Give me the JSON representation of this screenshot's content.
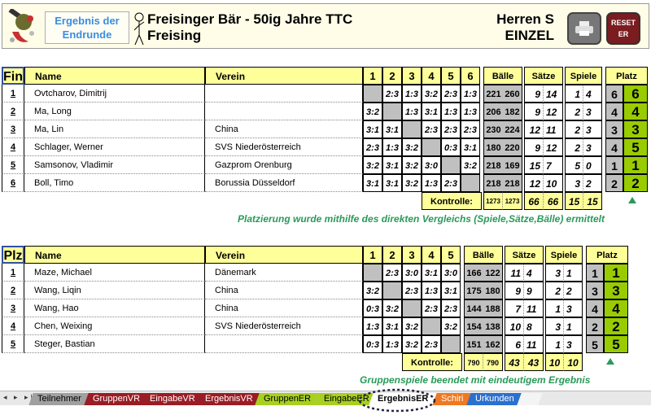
{
  "header": {
    "end_button": "Ergebnis der Endrunde",
    "title_line1": "Freisinger Bär - 50ig Jahre TTC",
    "title_line2": "Freising",
    "category_line1": "Herren S",
    "category_line2": "EINZEL",
    "print_icon": "printer-icon",
    "reset_label_line1": "RESET",
    "reset_label_line2": "ER"
  },
  "tables": [
    {
      "corner": "Fin",
      "col_name": "Name",
      "col_verein": "Verein",
      "cols": [
        "1",
        "2",
        "3",
        "4",
        "5",
        "6"
      ],
      "col_baelle": "Bälle",
      "col_saetze": "Sätze",
      "col_spiele": "Spiele",
      "col_platz": "Platz",
      "rows": [
        {
          "rank": "1",
          "name": "Ovtcharov, Dimitrij",
          "verein": "",
          "results": [
            null,
            "2:3",
            "1:3",
            "3:2",
            "2:3",
            "1:3"
          ],
          "baelle": [
            "221",
            "260"
          ],
          "saetze": [
            "9",
            "14"
          ],
          "spiele": [
            "1",
            "4"
          ],
          "platz_calc": "6",
          "platz": "6"
        },
        {
          "rank": "2",
          "name": "Ma, Long",
          "verein": "",
          "results": [
            "3:2",
            null,
            "1:3",
            "3:1",
            "1:3",
            "1:3"
          ],
          "baelle": [
            "206",
            "182"
          ],
          "saetze": [
            "9",
            "12"
          ],
          "spiele": [
            "2",
            "3"
          ],
          "platz_calc": "4",
          "platz": "4"
        },
        {
          "rank": "3",
          "name": "Ma, Lin",
          "verein": "China",
          "results": [
            "3:1",
            "3:1",
            null,
            "2:3",
            "2:3",
            "2:3"
          ],
          "baelle": [
            "230",
            "224"
          ],
          "saetze": [
            "12",
            "11"
          ],
          "spiele": [
            "2",
            "3"
          ],
          "platz_calc": "3",
          "platz": "3"
        },
        {
          "rank": "4",
          "name": "Schlager, Werner",
          "verein": "SVS Niederösterreich",
          "results": [
            "2:3",
            "1:3",
            "3:2",
            null,
            "0:3",
            "3:1"
          ],
          "baelle": [
            "180",
            "220"
          ],
          "saetze": [
            "9",
            "12"
          ],
          "spiele": [
            "2",
            "3"
          ],
          "platz_calc": "4",
          "platz": "5"
        },
        {
          "rank": "5",
          "name": "Samsonov, Vladimir",
          "verein": "Gazprom Orenburg",
          "results": [
            "3:2",
            "3:1",
            "3:2",
            "3:0",
            null,
            "3:2"
          ],
          "baelle": [
            "218",
            "169"
          ],
          "saetze": [
            "15",
            "7"
          ],
          "spiele": [
            "5",
            "0"
          ],
          "platz_calc": "1",
          "platz": "1"
        },
        {
          "rank": "6",
          "name": "Boll, Timo",
          "verein": "Borussia Düsseldorf",
          "results": [
            "3:1",
            "3:1",
            "3:2",
            "1:3",
            "2:3",
            null
          ],
          "baelle": [
            "218",
            "218"
          ],
          "saetze": [
            "12",
            "10"
          ],
          "spiele": [
            "3",
            "2"
          ],
          "platz_calc": "2",
          "platz": "2"
        }
      ],
      "kontrolle_label": "Kontrolle:",
      "kontrolle": {
        "baelle": [
          "1273",
          "1273"
        ],
        "saetze": [
          "66",
          "66"
        ],
        "spiele": [
          "15",
          "15"
        ]
      },
      "note": "Platzierung wurde mithilfe des direkten Vergleichs (Spiele,Sätze,Bälle) ermittelt"
    },
    {
      "corner": "Plz",
      "col_name": "Name",
      "col_verein": "Verein",
      "cols": [
        "1",
        "2",
        "3",
        "4",
        "5"
      ],
      "col_baelle": "Bälle",
      "col_saetze": "Sätze",
      "col_spiele": "Spiele",
      "col_platz": "Platz",
      "rows": [
        {
          "rank": "1",
          "name": "Maze, Michael",
          "verein": "Dänemark",
          "results": [
            null,
            "2:3",
            "3:0",
            "3:1",
            "3:0"
          ],
          "baelle": [
            "166",
            "122"
          ],
          "saetze": [
            "11",
            "4"
          ],
          "spiele": [
            "3",
            "1"
          ],
          "platz_calc": "1",
          "platz": "1"
        },
        {
          "rank": "2",
          "name": "Wang, Liqin",
          "verein": "China",
          "results": [
            "3:2",
            null,
            "2:3",
            "1:3",
            "3:1"
          ],
          "baelle": [
            "175",
            "180"
          ],
          "saetze": [
            "9",
            "9"
          ],
          "spiele": [
            "2",
            "2"
          ],
          "platz_calc": "3",
          "platz": "3"
        },
        {
          "rank": "3",
          "name": "Wang, Hao",
          "verein": "China",
          "results": [
            "0:3",
            "3:2",
            null,
            "2:3",
            "2:3"
          ],
          "baelle": [
            "144",
            "188"
          ],
          "saetze": [
            "7",
            "11"
          ],
          "spiele": [
            "1",
            "3"
          ],
          "platz_calc": "4",
          "platz": "4"
        },
        {
          "rank": "4",
          "name": "Chen, Weixing",
          "verein": "SVS Niederösterreich",
          "results": [
            "1:3",
            "3:1",
            "3:2",
            null,
            "3:2"
          ],
          "baelle": [
            "154",
            "138"
          ],
          "saetze": [
            "10",
            "8"
          ],
          "spiele": [
            "3",
            "1"
          ],
          "platz_calc": "2",
          "platz": "2"
        },
        {
          "rank": "5",
          "name": "Steger, Bastian",
          "verein": "",
          "results": [
            "0:3",
            "1:3",
            "3:2",
            "2:3",
            null
          ],
          "baelle": [
            "151",
            "162"
          ],
          "saetze": [
            "6",
            "11"
          ],
          "spiele": [
            "1",
            "3"
          ],
          "platz_calc": "5",
          "platz": "5"
        }
      ],
      "kontrolle_label": "Kontrolle:",
      "kontrolle": {
        "baelle": [
          "790",
          "790"
        ],
        "saetze": [
          "43",
          "43"
        ],
        "spiele": [
          "10",
          "10"
        ]
      },
      "note": "Gruppenspiele beendet mit eindeutigem Ergebnis"
    }
  ],
  "sheet_tabs": [
    {
      "label": "Teilnehmer",
      "color": "#a0a0a0",
      "text": "#000"
    },
    {
      "label": "GruppenVR",
      "color": "#9a1c24",
      "text": "#fff"
    },
    {
      "label": "EingabeVR",
      "color": "#9a1c24",
      "text": "#fff"
    },
    {
      "label": "ErgebnisVR",
      "color": "#9a1c24",
      "text": "#fff"
    },
    {
      "label": "GruppenER",
      "color": "#a8d020",
      "text": "#000"
    },
    {
      "label": "EingabeER",
      "color": "#a8d020",
      "text": "#000"
    },
    {
      "label": "ErgebnisER",
      "color": "#ffffff",
      "text": "#000",
      "active": true
    },
    {
      "label": "Schiri",
      "color": "#f07820",
      "text": "#fff"
    },
    {
      "label": "Urkunden",
      "color": "#2a70d0",
      "text": "#fff"
    }
  ],
  "colors": {
    "header_yellow": "#ffff99",
    "platz_green": "#99cc00",
    "note_green": "#2a9a5a",
    "diag_gray": "#c0c0c0"
  }
}
